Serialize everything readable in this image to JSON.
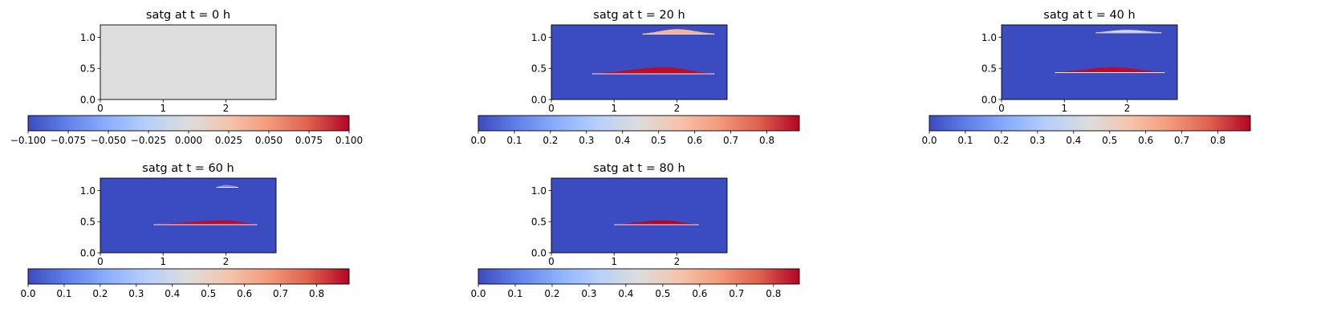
{
  "chart_data": [
    {
      "type": "heatmap",
      "title": "satg at t = 0 h",
      "xlim": [
        0,
        2.8
      ],
      "ylim": [
        0,
        1.2
      ],
      "x_ticks": [
        "0",
        "1",
        "2"
      ],
      "y_ticks": [
        "0.0",
        "0.5",
        "1.0"
      ],
      "field": "uniform",
      "uniform_value": 0.0,
      "colorbar": {
        "colormap": "coolwarm",
        "min": -0.1,
        "max": 0.1,
        "ticks": [
          "−0.100",
          "−0.075",
          "−0.050",
          "−0.025",
          "0.000",
          "0.025",
          "0.050",
          "0.075",
          "0.100"
        ]
      }
    },
    {
      "type": "heatmap",
      "title": "satg at t = 20 h",
      "xlim": [
        0,
        2.8
      ],
      "ylim": [
        0,
        1.2
      ],
      "x_ticks": [
        "0",
        "1",
        "2"
      ],
      "y_ticks": [
        "0.0",
        "0.5",
        "1.0"
      ],
      "background_value": 0.0,
      "plumes": [
        {
          "x0": 0.65,
          "x1": 2.6,
          "base": 0.42,
          "peak_x": 1.8,
          "top": 0.52,
          "value": 0.88
        },
        {
          "x0": 1.45,
          "x1": 2.6,
          "base": 1.06,
          "peak_x": 2.0,
          "top": 1.13,
          "value": 0.6
        }
      ],
      "colorbar": {
        "colormap": "coolwarm",
        "min": 0.0,
        "max": 0.89,
        "ticks": [
          "0.0",
          "0.1",
          "0.2",
          "0.3",
          "0.4",
          "0.5",
          "0.6",
          "0.7",
          "0.8"
        ]
      }
    },
    {
      "type": "heatmap",
      "title": "satg at t = 40 h",
      "xlim": [
        0,
        2.8
      ],
      "ylim": [
        0,
        1.2
      ],
      "x_ticks": [
        "0",
        "1",
        "2"
      ],
      "y_ticks": [
        "0.0",
        "0.5",
        "1.0"
      ],
      "background_value": 0.0,
      "plumes": [
        {
          "x0": 0.85,
          "x1": 2.6,
          "base": 0.44,
          "peak_x": 1.8,
          "top": 0.52,
          "value": 0.88
        },
        {
          "x0": 1.5,
          "x1": 2.55,
          "base": 1.08,
          "peak_x": 2.0,
          "top": 1.12,
          "value": 0.4
        }
      ],
      "colorbar": {
        "colormap": "coolwarm",
        "min": 0.0,
        "max": 0.89,
        "ticks": [
          "0.0",
          "0.1",
          "0.2",
          "0.3",
          "0.4",
          "0.5",
          "0.6",
          "0.7",
          "0.8"
        ]
      }
    },
    {
      "type": "heatmap",
      "title": "satg at t = 60 h",
      "xlim": [
        0,
        2.8
      ],
      "ylim": [
        0,
        1.2
      ],
      "x_ticks": [
        "0",
        "1",
        "2"
      ],
      "y_ticks": [
        "0.0",
        "0.5",
        "1.0"
      ],
      "background_value": 0.0,
      "plumes": [
        {
          "x0": 0.85,
          "x1": 2.5,
          "base": 0.46,
          "peak_x": 2.0,
          "top": 0.52,
          "value": 0.88
        },
        {
          "x0": 1.85,
          "x1": 2.2,
          "base": 1.06,
          "peak_x": 2.0,
          "top": 1.09,
          "value": 0.15
        }
      ],
      "colorbar": {
        "colormap": "coolwarm",
        "min": 0.0,
        "max": 0.89,
        "ticks": [
          "0.0",
          "0.1",
          "0.2",
          "0.3",
          "0.4",
          "0.5",
          "0.6",
          "0.7",
          "0.8"
        ]
      }
    },
    {
      "type": "heatmap",
      "title": "satg at t = 80 h",
      "xlim": [
        0,
        2.8
      ],
      "ylim": [
        0,
        1.2
      ],
      "x_ticks": [
        "0",
        "1",
        "2"
      ],
      "y_ticks": [
        "0.0",
        "0.5",
        "1.0"
      ],
      "background_value": 0.0,
      "plumes": [
        {
          "x0": 1.0,
          "x1": 2.35,
          "base": 0.46,
          "peak_x": 1.8,
          "top": 0.52,
          "value": 0.88
        }
      ],
      "colorbar": {
        "colormap": "coolwarm",
        "min": 0.0,
        "max": 0.87,
        "ticks": [
          "0.0",
          "0.1",
          "0.2",
          "0.3",
          "0.4",
          "0.5",
          "0.6",
          "0.7",
          "0.8"
        ]
      }
    }
  ]
}
